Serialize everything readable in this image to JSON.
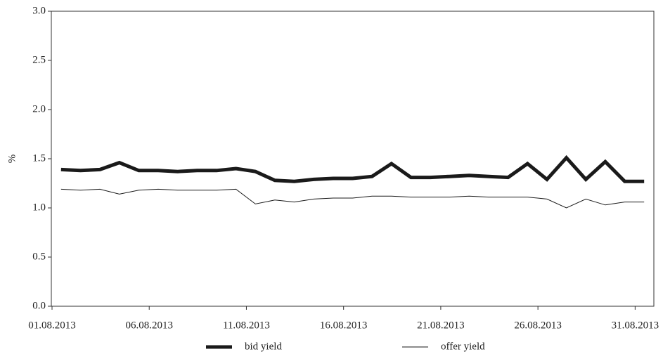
{
  "chart_data": {
    "type": "line",
    "ylabel": "%",
    "x": [
      "01.08.2013",
      null,
      null,
      null,
      null,
      "06.08.2013",
      null,
      null,
      null,
      null,
      "11.08.2013",
      null,
      null,
      null,
      null,
      "16.08.2013",
      null,
      null,
      null,
      null,
      "21.08.2013",
      null,
      null,
      null,
      null,
      "26.08.2013",
      null,
      null,
      null,
      null,
      "31.08.2013"
    ],
    "series": [
      {
        "name": "bid yield",
        "color": "#1a1a1a",
        "linewidth": 5,
        "values": [
          1.39,
          1.38,
          1.39,
          1.46,
          1.38,
          1.38,
          1.37,
          1.38,
          1.38,
          1.4,
          1.37,
          1.28,
          1.27,
          1.29,
          1.3,
          1.3,
          1.32,
          1.45,
          1.31,
          1.31,
          1.32,
          1.33,
          1.32,
          1.31,
          1.45,
          1.29,
          1.51,
          1.29,
          1.47,
          1.27,
          1.27
        ]
      },
      {
        "name": "offer yield",
        "color": "#1a1a1a",
        "linewidth": 1,
        "values": [
          1.19,
          1.18,
          1.19,
          1.14,
          1.18,
          1.19,
          1.18,
          1.18,
          1.18,
          1.19,
          1.04,
          1.08,
          1.06,
          1.09,
          1.1,
          1.1,
          1.12,
          1.12,
          1.11,
          1.11,
          1.11,
          1.12,
          1.11,
          1.11,
          1.11,
          1.09,
          1.0,
          1.09,
          1.03,
          1.06,
          1.06
        ]
      }
    ],
    "ylim": [
      0,
      3
    ],
    "yticks": [
      {
        "value": 0,
        "label": "0.0"
      },
      {
        "value": 0.5,
        "label": "0.5"
      },
      {
        "value": 1,
        "label": "1.0"
      },
      {
        "value": 1.5,
        "label": "1.5"
      },
      {
        "value": 2,
        "label": "2.0"
      },
      {
        "value": 2.5,
        "label": "2.5"
      },
      {
        "value": 3,
        "label": "3.0"
      }
    ],
    "legend": "bottom"
  }
}
